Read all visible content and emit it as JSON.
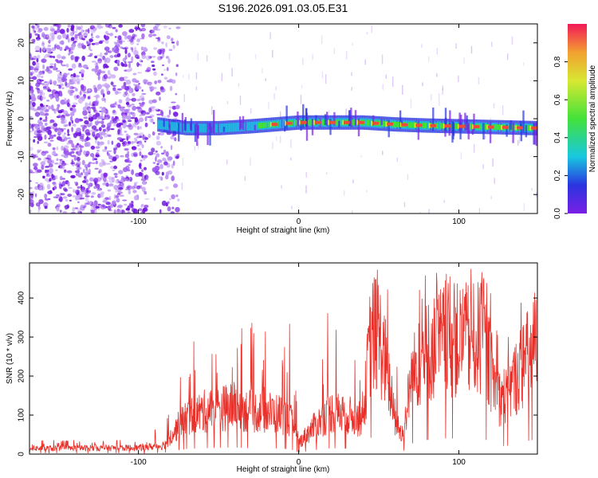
{
  "title": "S196.2026.091.03.05.E31",
  "colors": {
    "signal_line": "#e8312a",
    "speckle_dark": "#7a1fe6",
    "speckle_light": "#c8a8f5",
    "ridge_low": "#2a35e0",
    "ridge_mid": "#18c8e0",
    "ridge_high": "#43e23a",
    "ridge_peak": "#f24a3a"
  },
  "chart_data": [
    {
      "type": "heatmap",
      "title": "S196.2026.091.03.05.E31",
      "xlabel": "Height of straight line (km)",
      "ylabel": "Frequency (Hz)",
      "xlim": [
        -168,
        149
      ],
      "ylim": [
        -25,
        25
      ],
      "xticks": [
        -100,
        0,
        100
      ],
      "xtick_labels": [
        "-100",
        "0",
        "100"
      ],
      "yticks": [
        -20,
        -10,
        0,
        10,
        20
      ],
      "ytick_labels": [
        "-20",
        "-10",
        "0",
        "10",
        "20"
      ],
      "colorbar": {
        "label": "Normalized spectral amplitude",
        "range": [
          0.0,
          1.0
        ],
        "ticks": [
          0.0,
          0.2,
          0.4,
          0.6,
          0.8
        ],
        "tick_labels": [
          "0.0",
          "0.2",
          "0.4",
          "0.6",
          "0.8"
        ]
      },
      "ridge": {
        "description_units": "frequency in Hz vs height in km",
        "x": [
          -88,
          -70,
          -50,
          -30,
          -15,
          0,
          20,
          40,
          60,
          80,
          100,
          120,
          149
        ],
        "y": [
          -1.5,
          -2.5,
          -2.5,
          -2.0,
          -1.5,
          -1.0,
          -1.0,
          -1.0,
          -1.5,
          -1.8,
          -2.0,
          -2.2,
          -2.5
        ],
        "amplitude": [
          0.3,
          0.35,
          0.4,
          0.45,
          0.6,
          0.8,
          0.9,
          0.85,
          0.85,
          0.85,
          0.9,
          0.85,
          0.8
        ]
      }
    },
    {
      "type": "line",
      "xlabel": "Height of straight line (km)",
      "ylabel": "SNR (10 * v/v)",
      "xlim": [
        -168,
        149
      ],
      "ylim": [
        0,
        490
      ],
      "xticks": [
        -100,
        0,
        100
      ],
      "xtick_labels": [
        "-100",
        "0",
        "100"
      ],
      "yticks": [
        0,
        100,
        200,
        300,
        400
      ],
      "ytick_labels": [
        "0",
        "100",
        "200",
        "300",
        "400"
      ],
      "series": [
        {
          "name": "SNR",
          "envelope_x": [
            -168,
            -100,
            -85,
            -80,
            -75,
            -70,
            -60,
            -50,
            -40,
            -30,
            -20,
            -10,
            -5,
            0,
            10,
            20,
            30,
            40,
            45,
            50,
            55,
            60,
            65,
            70,
            75,
            80,
            90,
            100,
            110,
            115,
            120,
            125,
            130,
            140,
            149
          ],
          "envelope_y": [
            20,
            22,
            30,
            60,
            100,
            130,
            150,
            160,
            170,
            150,
            150,
            140,
            120,
            40,
            100,
            150,
            140,
            120,
            420,
            420,
            300,
            120,
            60,
            260,
            330,
            360,
            400,
            400,
            400,
            410,
            300,
            200,
            210,
            320,
            380
          ],
          "spike_max": [
            35,
            40,
            80,
            160,
            240,
            280,
            300,
            260,
            300,
            360,
            310,
            370,
            360,
            120,
            380,
            410,
            300,
            220,
            490,
            490,
            460,
            300,
            200,
            380,
            440,
            470,
            480,
            470,
            480,
            490,
            460,
            320,
            380,
            420,
            440
          ]
        }
      ]
    }
  ]
}
